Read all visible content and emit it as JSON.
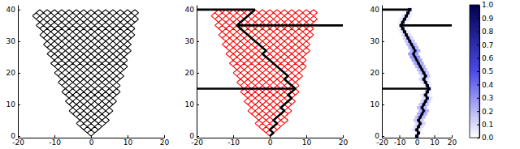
{
  "chart_data": [
    {
      "type": "lattice",
      "color": "#000000",
      "xlim": [
        -20,
        20
      ],
      "ylim": [
        -0.5,
        41.5
      ],
      "xticks": [
        -20,
        -10,
        0,
        10,
        20
      ],
      "yticks": [
        0,
        10,
        20,
        30,
        40
      ],
      "lattice": {
        "y": [
          0,
          1,
          2,
          3,
          4,
          5,
          6,
          7,
          8,
          9,
          10,
          11,
          12,
          13,
          14,
          15,
          16,
          17,
          18,
          19,
          20,
          21,
          22,
          23,
          24,
          25,
          26,
          27,
          28,
          29,
          30,
          31,
          32,
          33,
          34,
          35,
          36,
          37,
          38,
          39,
          40
        ],
        "xmin": [
          0,
          -1,
          -2,
          -3,
          -4,
          -3,
          -4,
          -5,
          -6,
          -5,
          -6,
          -7,
          -6,
          -7,
          -8,
          -7,
          -8,
          -9,
          -8,
          -9,
          -10,
          -9,
          -10,
          -11,
          -10,
          -11,
          -12,
          -11,
          -12,
          -13,
          -12,
          -13,
          -14,
          -13,
          -14,
          -15,
          -14,
          -15,
          -16,
          -15,
          -14
        ],
        "xmax": [
          0,
          1,
          2,
          3,
          4,
          5,
          4,
          5,
          6,
          5,
          6,
          7,
          6,
          7,
          8,
          7,
          8,
          7,
          8,
          9,
          8,
          9,
          10,
          9,
          10,
          9,
          10,
          11,
          10,
          11,
          10,
          11,
          12,
          11,
          12,
          11,
          12,
          13,
          12,
          13,
          12
        ]
      }
    },
    {
      "type": "lattice",
      "color": "#ff0000",
      "xlim": [
        -20,
        20
      ],
      "ylim": [
        -0.5,
        41.5
      ],
      "xticks": [
        -20,
        -10,
        0,
        10,
        20
      ],
      "yticks": [
        0,
        10,
        20,
        30,
        40
      ],
      "lattice": {
        "y": [
          0,
          1,
          2,
          3,
          4,
          5,
          6,
          7,
          8,
          9,
          10,
          11,
          12,
          13,
          14,
          15,
          16,
          17,
          18,
          19,
          20,
          21,
          22,
          23,
          24,
          25,
          26,
          27,
          28,
          29,
          30,
          31,
          32,
          33,
          34,
          35,
          36,
          37,
          38,
          39,
          40
        ],
        "xmin": [
          0,
          -1,
          -2,
          -3,
          -4,
          -3,
          -4,
          -5,
          -6,
          -5,
          -6,
          -7,
          -6,
          -7,
          -8,
          -7,
          -8,
          -9,
          -8,
          -9,
          -10,
          -9,
          -10,
          -11,
          -10,
          -11,
          -12,
          -11,
          -12,
          -13,
          -12,
          -13,
          -14,
          -13,
          -14,
          -15,
          -14,
          -15,
          -16,
          -15,
          -14
        ],
        "xmax": [
          0,
          1,
          2,
          3,
          4,
          5,
          4,
          5,
          6,
          5,
          6,
          7,
          6,
          7,
          8,
          7,
          8,
          7,
          8,
          9,
          8,
          9,
          10,
          9,
          10,
          9,
          10,
          11,
          10,
          11,
          10,
          11,
          12,
          11,
          12,
          11,
          12,
          13,
          12,
          13,
          12
        ]
      },
      "path": {
        "color": "#000000",
        "y": [
          0,
          1,
          2,
          3,
          4,
          5,
          6,
          7,
          8,
          9,
          10,
          11,
          12,
          13,
          14,
          15,
          16,
          17,
          18,
          19,
          20,
          21,
          22,
          23,
          24,
          25,
          26,
          27,
          28,
          29,
          30,
          31,
          32,
          33,
          34,
          35,
          36,
          37,
          38,
          39,
          40
        ],
        "x": [
          0,
          1,
          0,
          1,
          2,
          1,
          2,
          3,
          4,
          3,
          4,
          5,
          6,
          5,
          6,
          7,
          6,
          5,
          4,
          5,
          4,
          3,
          2,
          1,
          0,
          -1,
          -2,
          -1,
          -2,
          -3,
          -4,
          -5,
          -6,
          -7,
          -8,
          -9,
          -8,
          -7,
          -6,
          -5,
          -4
        ]
      },
      "hlines": [
        {
          "y": 15,
          "x": [
            -20,
            7
          ]
        },
        {
          "y": 35,
          "x": [
            -9,
            20
          ]
        },
        {
          "y": 40,
          "x": [
            -20,
            -4
          ]
        }
      ]
    },
    {
      "type": "heatmap",
      "xlim": [
        -20,
        20
      ],
      "ylim": [
        -0.5,
        41.5
      ],
      "xticks": [
        -20,
        -10,
        0,
        10,
        20
      ],
      "yticks": [
        0,
        10,
        20,
        30,
        40
      ],
      "cells": [
        [
          0,
          0,
          1
        ],
        [
          -1,
          1,
          0.03
        ],
        [
          1,
          1,
          0.94
        ],
        [
          3,
          1,
          0.03
        ],
        [
          -2,
          2,
          0.06
        ],
        [
          0,
          2,
          0.88
        ],
        [
          2,
          2,
          0.06
        ],
        [
          -1,
          3,
          0.09
        ],
        [
          1,
          3,
          0.82
        ],
        [
          3,
          3,
          0.09
        ],
        [
          0,
          4,
          0.12
        ],
        [
          2,
          4,
          0.76
        ],
        [
          4,
          4,
          0.12
        ],
        [
          -1,
          5,
          0.15
        ],
        [
          1,
          5,
          0.7
        ],
        [
          3,
          5,
          0.15
        ],
        [
          0,
          6,
          0.18
        ],
        [
          2,
          6,
          0.64
        ],
        [
          4,
          6,
          0.18
        ],
        [
          1,
          7,
          0.21
        ],
        [
          3,
          7,
          0.58
        ],
        [
          5,
          7,
          0.21
        ],
        [
          2,
          8,
          0.21
        ],
        [
          4,
          8,
          0.58
        ],
        [
          6,
          8,
          0.21
        ],
        [
          1,
          9,
          0.18
        ],
        [
          3,
          9,
          0.64
        ],
        [
          5,
          9,
          0.18
        ],
        [
          2,
          10,
          0.15
        ],
        [
          4,
          10,
          0.7
        ],
        [
          6,
          10,
          0.15
        ],
        [
          3,
          11,
          0.12
        ],
        [
          5,
          11,
          0.76
        ],
        [
          7,
          11,
          0.12
        ],
        [
          4,
          12,
          0.09
        ],
        [
          6,
          12,
          0.82
        ],
        [
          8,
          12,
          0.09
        ],
        [
          3,
          13,
          0.06
        ],
        [
          5,
          13,
          0.88
        ],
        [
          7,
          13,
          0.06
        ],
        [
          4,
          14,
          0.03
        ],
        [
          6,
          14,
          0.94
        ],
        [
          8,
          14,
          0.03
        ],
        [
          7,
          15,
          1
        ],
        [
          4,
          16,
          0.03
        ],
        [
          6,
          16,
          0.94
        ],
        [
          8,
          16,
          0.03
        ],
        [
          3,
          17,
          0.06
        ],
        [
          5,
          17,
          0.88
        ],
        [
          7,
          17,
          0.06
        ],
        [
          2,
          18,
          0.09
        ],
        [
          4,
          18,
          0.82
        ],
        [
          6,
          18,
          0.09
        ],
        [
          3,
          19,
          0.12
        ],
        [
          5,
          19,
          0.76
        ],
        [
          7,
          19,
          0.12
        ],
        [
          2,
          20,
          0.15
        ],
        [
          4,
          20,
          0.7
        ],
        [
          6,
          20,
          0.15
        ],
        [
          1,
          21,
          0.18
        ],
        [
          3,
          21,
          0.64
        ],
        [
          5,
          21,
          0.18
        ],
        [
          0,
          22,
          0.21
        ],
        [
          2,
          22,
          0.58
        ],
        [
          4,
          22,
          0.21
        ],
        [
          -1,
          23,
          0.24
        ],
        [
          1,
          23,
          0.52
        ],
        [
          3,
          23,
          0.24
        ],
        [
          -2,
          24,
          0.27
        ],
        [
          0,
          24,
          0.46
        ],
        [
          2,
          24,
          0.27
        ],
        [
          -3,
          25,
          0.3
        ],
        [
          -1,
          25,
          0.4
        ],
        [
          1,
          25,
          0.3
        ],
        [
          -4,
          26,
          0.27
        ],
        [
          -2,
          26,
          0.46
        ],
        [
          0,
          26,
          0.27
        ],
        [
          -3,
          27,
          0.24
        ],
        [
          -1,
          27,
          0.52
        ],
        [
          1,
          27,
          0.24
        ],
        [
          -4,
          28,
          0.21
        ],
        [
          -2,
          28,
          0.58
        ],
        [
          0,
          28,
          0.21
        ],
        [
          -5,
          29,
          0.18
        ],
        [
          -3,
          29,
          0.64
        ],
        [
          -1,
          29,
          0.18
        ],
        [
          -6,
          30,
          0.15
        ],
        [
          -4,
          30,
          0.7
        ],
        [
          -2,
          30,
          0.15
        ],
        [
          -7,
          31,
          0.12
        ],
        [
          -5,
          31,
          0.76
        ],
        [
          -3,
          31,
          0.12
        ],
        [
          -8,
          32,
          0.09
        ],
        [
          -6,
          32,
          0.82
        ],
        [
          -4,
          32,
          0.09
        ],
        [
          -9,
          33,
          0.06
        ],
        [
          -7,
          33,
          0.88
        ],
        [
          -5,
          33,
          0.06
        ],
        [
          -10,
          34,
          0.03
        ],
        [
          -8,
          34,
          0.94
        ],
        [
          -6,
          34,
          0.03
        ],
        [
          -9,
          35,
          1
        ],
        [
          -10,
          36,
          0.03
        ],
        [
          -8,
          36,
          0.94
        ],
        [
          -6,
          36,
          0.03
        ],
        [
          -9,
          37,
          0.06
        ],
        [
          -7,
          37,
          0.88
        ],
        [
          -5,
          37,
          0.06
        ],
        [
          -8,
          38,
          0.06
        ],
        [
          -6,
          38,
          0.88
        ],
        [
          -4,
          38,
          0.06
        ],
        [
          -7,
          39,
          0.03
        ],
        [
          -5,
          39,
          0.94
        ],
        [
          -3,
          39,
          0.03
        ],
        [
          -4,
          40,
          1
        ]
      ],
      "path": {
        "color": "#000000",
        "y": [
          0,
          1,
          2,
          3,
          4,
          5,
          6,
          7,
          8,
          9,
          10,
          11,
          12,
          13,
          14,
          15,
          16,
          17,
          18,
          19,
          20,
          21,
          22,
          23,
          24,
          25,
          26,
          27,
          28,
          29,
          30,
          31,
          32,
          33,
          34,
          35,
          36,
          37,
          38,
          39,
          40
        ],
        "x": [
          0,
          1,
          0,
          1,
          2,
          1,
          2,
          3,
          4,
          3,
          4,
          5,
          6,
          5,
          6,
          7,
          6,
          5,
          4,
          5,
          4,
          3,
          2,
          1,
          0,
          -1,
          -2,
          -1,
          -2,
          -3,
          -4,
          -5,
          -6,
          -7,
          -8,
          -9,
          -8,
          -7,
          -6,
          -5,
          -4
        ]
      },
      "hlines": [
        {
          "y": 15,
          "x": [
            -20,
            7
          ]
        },
        {
          "y": 35,
          "x": [
            -9,
            20
          ]
        },
        {
          "y": 40,
          "x": [
            -20,
            -4
          ]
        }
      ],
      "colorbar": {
        "lim": [
          0,
          1
        ],
        "colors": [
          "#ffffff",
          "#4a4ae8",
          "#000050"
        ],
        "ticks": [
          {
            "value": 0,
            "label": "0.0"
          },
          0.1,
          0.2,
          0.3,
          0.4,
          0.5,
          0.6,
          0.7,
          0.8,
          0.9,
          {
            "value": 1,
            "label": "1.0"
          }
        ]
      }
    }
  ]
}
